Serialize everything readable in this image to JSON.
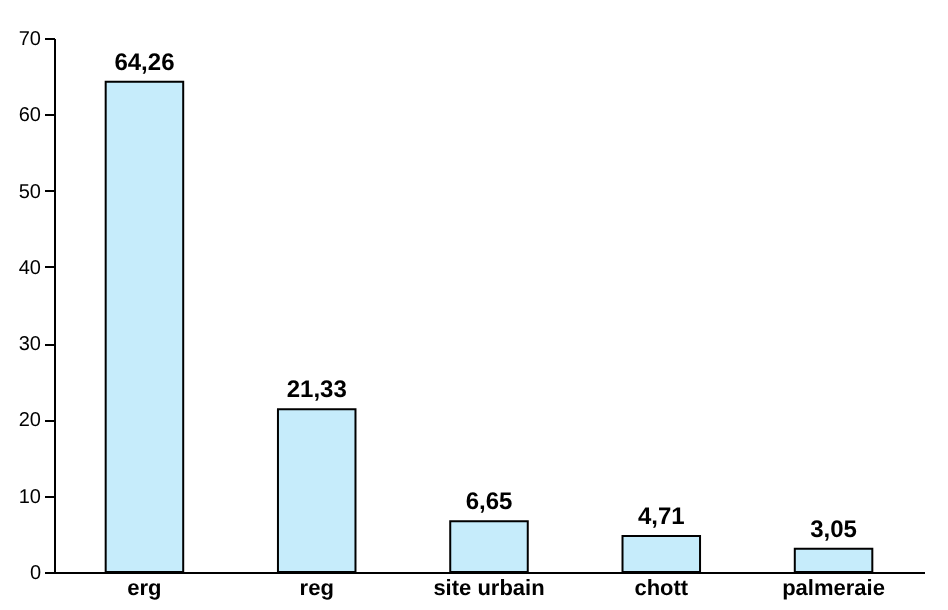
{
  "chart_data": {
    "type": "bar",
    "categories": [
      "erg",
      "reg",
      "site urbain",
      "chott",
      "palmeraie"
    ],
    "values": [
      64.26,
      21.33,
      6.65,
      4.71,
      3.05
    ],
    "value_labels": [
      "64,26",
      "21,33",
      "6,65",
      "4,71",
      "3,05"
    ],
    "color": "#c6ecfb",
    "ylim": [
      0,
      70
    ],
    "yticks": [
      0,
      10,
      20,
      30,
      40,
      50,
      60,
      70
    ],
    "grid": false
  }
}
